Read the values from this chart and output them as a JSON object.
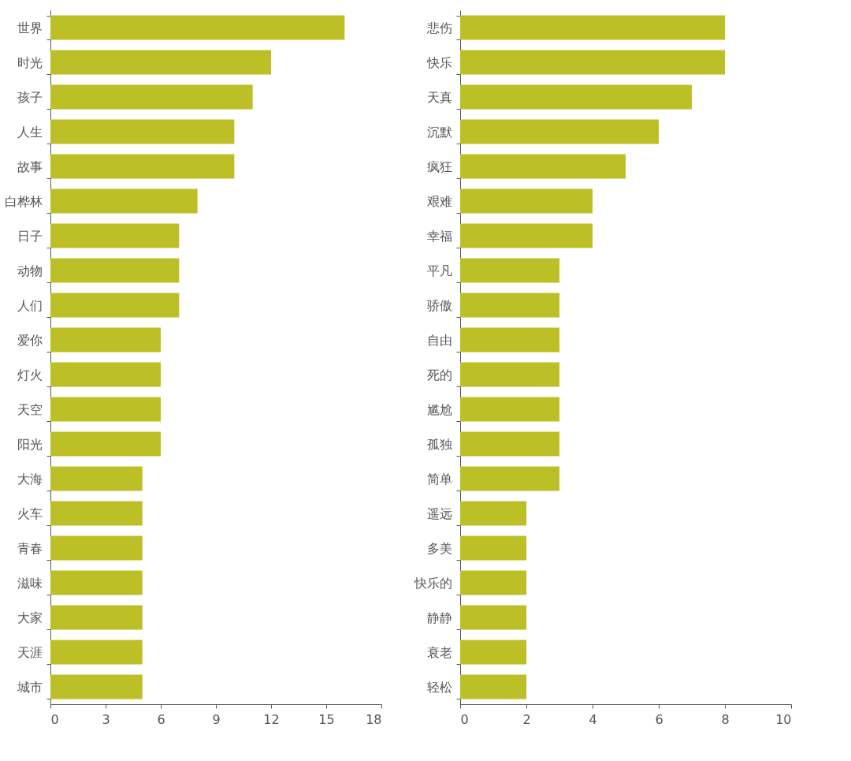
{
  "chart_data": [
    {
      "type": "bar",
      "orientation": "horizontal",
      "color": "#bcbf25",
      "grid": false,
      "xlim": [
        0,
        18
      ],
      "xticks": [
        0,
        3,
        6,
        9,
        12,
        15,
        18
      ],
      "categories": [
        "世界",
        "时光",
        "孩子",
        "人生",
        "故事",
        "白桦林",
        "日子",
        "动物",
        "人们",
        "爱你",
        "灯火",
        "天空",
        "阳光",
        "大海",
        "火车",
        "青春",
        "滋味",
        "大家",
        "天涯",
        "城市"
      ],
      "values": [
        16,
        12,
        11,
        10,
        10,
        8,
        7,
        7,
        7,
        6,
        6,
        6,
        6,
        5,
        5,
        5,
        5,
        5,
        5,
        5
      ]
    },
    {
      "type": "bar",
      "orientation": "horizontal",
      "color": "#bcbf25",
      "grid": false,
      "xlim": [
        0,
        10
      ],
      "xticks": [
        0,
        2,
        4,
        6,
        8,
        10
      ],
      "categories": [
        "悲伤",
        "快乐",
        "天真",
        "沉默",
        "疯狂",
        "艰难",
        "幸福",
        "平凡",
        "骄傲",
        "自由",
        "死的",
        "尴尬",
        "孤独",
        "简单",
        "遥远",
        "多美",
        "快乐的",
        "静静",
        "衰老",
        "轻松"
      ],
      "values": [
        8,
        8,
        7,
        6,
        5,
        4,
        4,
        3,
        3,
        3,
        3,
        3,
        3,
        3,
        2,
        2,
        2,
        2,
        2,
        2
      ]
    }
  ]
}
